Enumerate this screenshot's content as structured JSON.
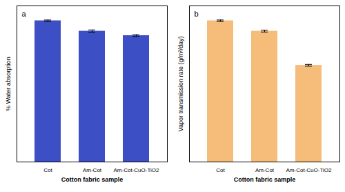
{
  "chart_data": [
    {
      "type": "bar",
      "title": "a",
      "categories": [
        "Cot",
        "Am-Cot",
        "Am-Cot-CuO-TiO2"
      ],
      "values": [
        95,
        88,
        85
      ],
      "errors": [
        0.5,
        0.8,
        0.6
      ],
      "color": "#3D4FC4",
      "ylabel": "% Water absorption",
      "xlabel": "Cotton fabric sample",
      "ylim": [
        0,
        105
      ],
      "yticks": [],
      "tick_labels": "x"
    },
    {
      "type": "bar",
      "title": "b",
      "categories": [
        "Cot",
        "Am-Cot",
        "Am-Cot-CuO-TiO2"
      ],
      "values": [
        95,
        88,
        65
      ],
      "errors": [
        0.5,
        0.6,
        0.6
      ],
      "color": "#F5BC7A",
      "ylabel": "Vapor transmission rate (g/m²/day)",
      "xlabel": "Cotton fabric sample",
      "ylim": [
        0,
        105
      ],
      "yticks": [],
      "tick_labels": "x"
    }
  ]
}
